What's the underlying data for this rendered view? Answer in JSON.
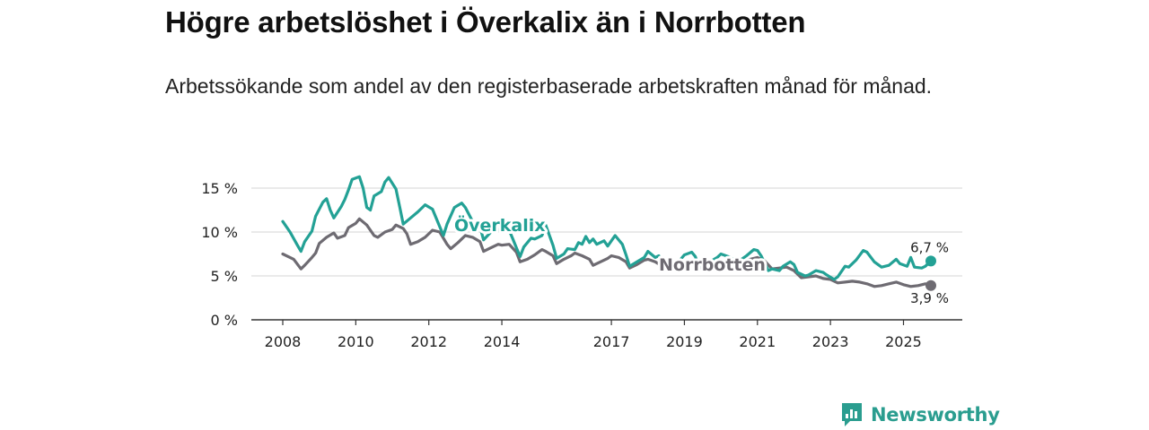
{
  "title": "Högre arbetslöshet i Överkalix än i Norrbotten",
  "subtitle": "Arbetssökande som andel av den registerbaserade arbetskraften månad för månad.",
  "brand": {
    "name": "Newsworthy",
    "icon": "bar-chart-icon",
    "color": "#2a9d8f"
  },
  "chart_data": {
    "type": "line",
    "title": "",
    "xlabel": "",
    "ylabel": "",
    "x_ticks": [
      2008,
      2010,
      2012,
      2014,
      2017,
      2019,
      2021,
      2023,
      2025
    ],
    "y_ticks": [
      0,
      5,
      10,
      15
    ],
    "y_tick_labels": [
      "0 %",
      "5 %",
      "10 %",
      "15 %"
    ],
    "xlim": [
      2008.0,
      2025.75
    ],
    "ylim": [
      0,
      16.5
    ],
    "grid": true,
    "series": [
      {
        "name": "Överkalix",
        "color": "#23a195",
        "end_label": "6,7 %",
        "points": [
          [
            2008.0,
            11.2
          ],
          [
            2008.2,
            10.0
          ],
          [
            2008.4,
            8.5
          ],
          [
            2008.5,
            7.8
          ],
          [
            2008.6,
            8.9
          ],
          [
            2008.8,
            10.1
          ],
          [
            2008.9,
            11.8
          ],
          [
            2009.1,
            13.4
          ],
          [
            2009.2,
            13.8
          ],
          [
            2009.3,
            12.5
          ],
          [
            2009.4,
            11.6
          ],
          [
            2009.6,
            12.9
          ],
          [
            2009.7,
            13.7
          ],
          [
            2009.8,
            14.8
          ],
          [
            2009.9,
            16.0
          ],
          [
            2010.1,
            16.3
          ],
          [
            2010.2,
            15.0
          ],
          [
            2010.3,
            12.8
          ],
          [
            2010.4,
            12.5
          ],
          [
            2010.5,
            14.1
          ],
          [
            2010.7,
            14.6
          ],
          [
            2010.8,
            15.7
          ],
          [
            2010.9,
            16.2
          ],
          [
            2011.1,
            14.9
          ],
          [
            2011.2,
            12.9
          ],
          [
            2011.3,
            10.9
          ],
          [
            2011.5,
            11.6
          ],
          [
            2011.7,
            12.3
          ],
          [
            2011.9,
            13.1
          ],
          [
            2012.1,
            12.6
          ],
          [
            2012.3,
            10.6
          ],
          [
            2012.4,
            9.6
          ],
          [
            2012.5,
            10.9
          ],
          [
            2012.7,
            12.8
          ],
          [
            2012.9,
            13.3
          ],
          [
            2013.0,
            12.8
          ],
          [
            2013.2,
            11.2
          ],
          [
            2013.4,
            10.6
          ],
          [
            2013.5,
            9.1
          ],
          [
            2013.7,
            10.0
          ],
          [
            2013.9,
            10.2
          ],
          [
            2014.0,
            10.6
          ],
          [
            2014.2,
            10.2
          ],
          [
            2014.3,
            9.2
          ],
          [
            2014.4,
            8.2
          ],
          [
            2014.5,
            7.2
          ],
          [
            2014.6,
            8.3
          ],
          [
            2014.8,
            9.3
          ],
          [
            2014.9,
            9.2
          ],
          [
            2015.1,
            9.6
          ],
          [
            2015.2,
            10.8
          ],
          [
            2015.4,
            8.5
          ],
          [
            2015.5,
            7.0
          ],
          [
            2015.7,
            7.5
          ],
          [
            2015.8,
            8.1
          ],
          [
            2016.0,
            8.0
          ],
          [
            2016.1,
            8.8
          ],
          [
            2016.2,
            8.6
          ],
          [
            2016.3,
            9.5
          ],
          [
            2016.4,
            8.8
          ],
          [
            2016.5,
            9.2
          ],
          [
            2016.6,
            8.6
          ],
          [
            2016.8,
            9.0
          ],
          [
            2016.9,
            8.4
          ],
          [
            2017.1,
            9.6
          ],
          [
            2017.2,
            9.1
          ],
          [
            2017.3,
            8.6
          ],
          [
            2017.4,
            7.4
          ],
          [
            2017.5,
            6.1
          ],
          [
            2017.7,
            6.6
          ],
          [
            2017.9,
            7.1
          ],
          [
            2018.0,
            7.8
          ],
          [
            2018.2,
            7.1
          ],
          [
            2018.3,
            7.3
          ],
          [
            2018.4,
            5.6
          ],
          [
            2018.6,
            5.9
          ],
          [
            2018.7,
            6.4
          ],
          [
            2018.9,
            6.9
          ],
          [
            2019.0,
            7.4
          ],
          [
            2019.2,
            7.7
          ],
          [
            2019.3,
            7.2
          ],
          [
            2019.4,
            6.1
          ],
          [
            2019.6,
            6.4
          ],
          [
            2019.7,
            6.6
          ],
          [
            2019.9,
            7.1
          ],
          [
            2020.0,
            7.5
          ],
          [
            2020.2,
            7.2
          ],
          [
            2020.4,
            6.8
          ],
          [
            2020.5,
            6.7
          ],
          [
            2020.7,
            7.3
          ],
          [
            2020.9,
            8.0
          ],
          [
            2021.0,
            7.9
          ],
          [
            2021.1,
            7.3
          ],
          [
            2021.3,
            5.6
          ],
          [
            2021.4,
            5.8
          ],
          [
            2021.6,
            5.6
          ],
          [
            2021.7,
            6.1
          ],
          [
            2021.9,
            6.6
          ],
          [
            2022.0,
            6.3
          ],
          [
            2022.1,
            5.4
          ],
          [
            2022.3,
            5.0
          ],
          [
            2022.4,
            5.1
          ],
          [
            2022.6,
            5.6
          ],
          [
            2022.8,
            5.4
          ],
          [
            2022.9,
            5.1
          ],
          [
            2023.1,
            4.6
          ],
          [
            2023.2,
            4.9
          ],
          [
            2023.4,
            6.1
          ],
          [
            2023.5,
            6.0
          ],
          [
            2023.7,
            6.8
          ],
          [
            2023.9,
            7.9
          ],
          [
            2024.0,
            7.7
          ],
          [
            2024.2,
            6.6
          ],
          [
            2024.4,
            6.0
          ],
          [
            2024.6,
            6.2
          ],
          [
            2024.8,
            6.9
          ],
          [
            2024.9,
            6.4
          ],
          [
            2025.1,
            6.1
          ],
          [
            2025.2,
            7.1
          ],
          [
            2025.3,
            6.0
          ],
          [
            2025.5,
            5.9
          ],
          [
            2025.6,
            6.1
          ],
          [
            2025.75,
            6.7
          ]
        ]
      },
      {
        "name": "Norrbotten",
        "color": "#6e6b72",
        "end_label": "3,9 %",
        "points": [
          [
            2008.0,
            7.5
          ],
          [
            2008.2,
            7.1
          ],
          [
            2008.3,
            6.9
          ],
          [
            2008.5,
            5.8
          ],
          [
            2008.6,
            6.2
          ],
          [
            2008.8,
            7.1
          ],
          [
            2008.9,
            7.6
          ],
          [
            2009.0,
            8.7
          ],
          [
            2009.2,
            9.4
          ],
          [
            2009.4,
            9.9
          ],
          [
            2009.5,
            9.3
          ],
          [
            2009.7,
            9.6
          ],
          [
            2009.8,
            10.5
          ],
          [
            2010.0,
            11.0
          ],
          [
            2010.1,
            11.5
          ],
          [
            2010.3,
            10.8
          ],
          [
            2010.5,
            9.6
          ],
          [
            2010.6,
            9.4
          ],
          [
            2010.8,
            10.0
          ],
          [
            2011.0,
            10.3
          ],
          [
            2011.1,
            10.8
          ],
          [
            2011.3,
            10.4
          ],
          [
            2011.4,
            9.8
          ],
          [
            2011.5,
            8.6
          ],
          [
            2011.7,
            8.9
          ],
          [
            2011.9,
            9.4
          ],
          [
            2012.1,
            10.2
          ],
          [
            2012.3,
            10.0
          ],
          [
            2012.5,
            8.6
          ],
          [
            2012.6,
            8.1
          ],
          [
            2012.8,
            8.8
          ],
          [
            2013.0,
            9.6
          ],
          [
            2013.2,
            9.4
          ],
          [
            2013.4,
            8.9
          ],
          [
            2013.5,
            7.8
          ],
          [
            2013.7,
            8.2
          ],
          [
            2013.9,
            8.6
          ],
          [
            2014.0,
            8.5
          ],
          [
            2014.2,
            8.6
          ],
          [
            2014.4,
            7.7
          ],
          [
            2014.5,
            6.6
          ],
          [
            2014.7,
            6.9
          ],
          [
            2014.9,
            7.4
          ],
          [
            2015.1,
            8.0
          ],
          [
            2015.2,
            7.8
          ],
          [
            2015.4,
            7.3
          ],
          [
            2015.5,
            6.4
          ],
          [
            2015.7,
            6.9
          ],
          [
            2015.9,
            7.3
          ],
          [
            2016.0,
            7.6
          ],
          [
            2016.2,
            7.3
          ],
          [
            2016.4,
            6.9
          ],
          [
            2016.5,
            6.2
          ],
          [
            2016.7,
            6.6
          ],
          [
            2016.9,
            7.0
          ],
          [
            2017.0,
            7.3
          ],
          [
            2017.2,
            7.1
          ],
          [
            2017.4,
            6.6
          ],
          [
            2017.5,
            5.9
          ],
          [
            2017.7,
            6.3
          ],
          [
            2017.9,
            6.8
          ],
          [
            2018.0,
            6.9
          ],
          [
            2018.2,
            6.6
          ],
          [
            2018.4,
            6.1
          ],
          [
            2018.5,
            5.7
          ],
          [
            2018.7,
            5.9
          ],
          [
            2018.9,
            6.2
          ],
          [
            2019.0,
            6.4
          ],
          [
            2019.2,
            6.3
          ],
          [
            2019.4,
            6.0
          ],
          [
            2019.6,
            5.6
          ],
          [
            2019.8,
            6.0
          ],
          [
            2020.0,
            6.4
          ],
          [
            2020.2,
            6.6
          ],
          [
            2020.4,
            6.8
          ],
          [
            2020.6,
            6.6
          ],
          [
            2020.8,
            6.9
          ],
          [
            2021.0,
            7.1
          ],
          [
            2021.2,
            6.7
          ],
          [
            2021.4,
            5.8
          ],
          [
            2021.6,
            5.9
          ],
          [
            2021.8,
            6.0
          ],
          [
            2022.0,
            5.6
          ],
          [
            2022.2,
            4.8
          ],
          [
            2022.4,
            4.9
          ],
          [
            2022.6,
            5.0
          ],
          [
            2022.8,
            4.7
          ],
          [
            2023.0,
            4.6
          ],
          [
            2023.2,
            4.2
          ],
          [
            2023.4,
            4.3
          ],
          [
            2023.6,
            4.4
          ],
          [
            2023.8,
            4.3
          ],
          [
            2024.0,
            4.1
          ],
          [
            2024.2,
            3.8
          ],
          [
            2024.4,
            3.9
          ],
          [
            2024.6,
            4.1
          ],
          [
            2024.8,
            4.3
          ],
          [
            2025.0,
            4.0
          ],
          [
            2025.2,
            3.8
          ],
          [
            2025.4,
            3.9
          ],
          [
            2025.6,
            4.1
          ],
          [
            2025.75,
            3.9
          ]
        ]
      }
    ]
  }
}
